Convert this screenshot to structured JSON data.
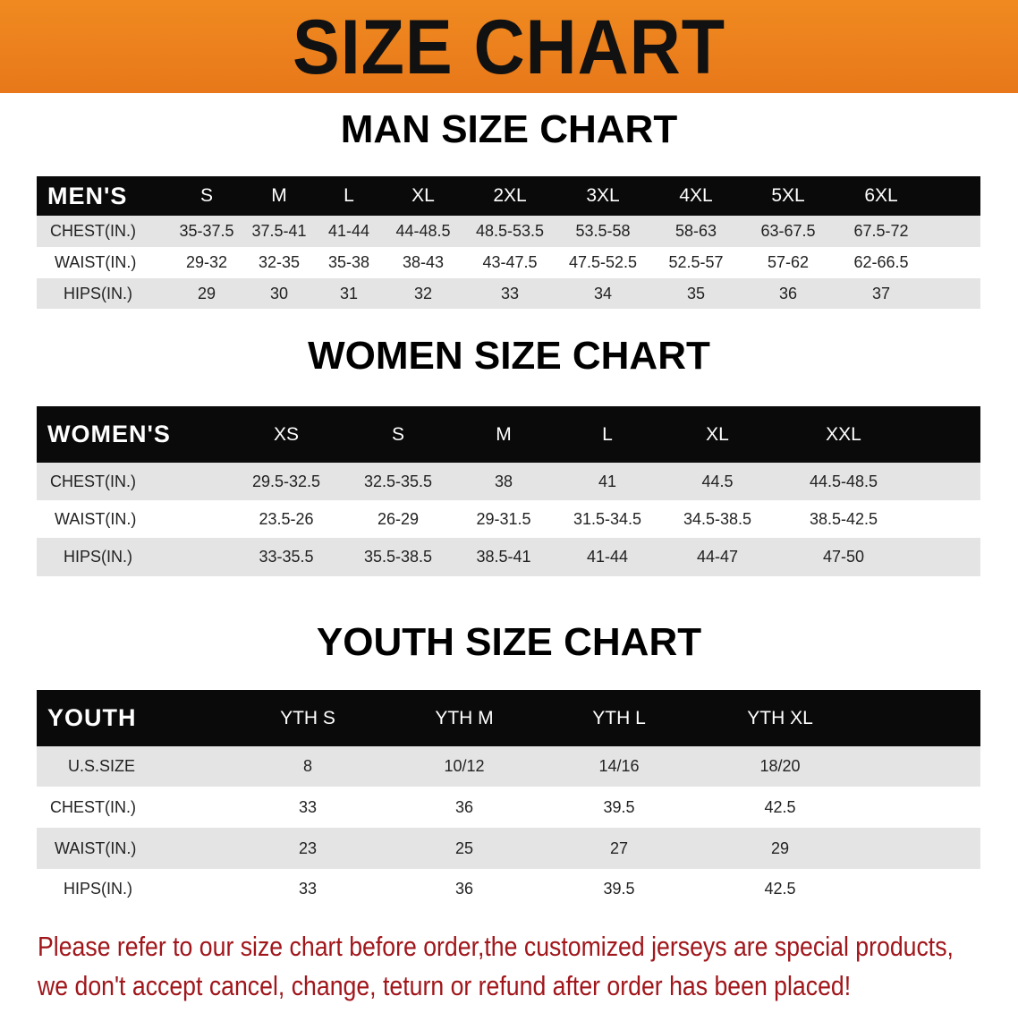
{
  "banner": {
    "title": "SIZE CHART",
    "color": "#ec8220"
  },
  "notice_color": "#a0161b",
  "sections": [
    {
      "title": "MAN SIZE CHART",
      "header": [
        "MEN'S",
        "S",
        "M",
        "L",
        "XL",
        "2XL",
        "3XL",
        "4XL",
        "5XL",
        "6XL"
      ],
      "rows": [
        [
          "CHEST(IN.)",
          "35-37.5",
          "37.5-41",
          "41-44",
          "44-48.5",
          "48.5-53.5",
          "53.5-58",
          "58-63",
          "63-67.5",
          "67.5-72"
        ],
        [
          "WAIST(IN.)",
          "29-32",
          "32-35",
          "35-38",
          "38-43",
          "43-47.5",
          "47.5-52.5",
          "52.5-57",
          "57-62",
          "62-66.5"
        ],
        [
          "HIPS(IN.)",
          "29",
          "30",
          "31",
          "32",
          "33",
          "34",
          "35",
          "36",
          "37"
        ]
      ]
    },
    {
      "title": "WOMEN SIZE CHART",
      "header": [
        "WOMEN'S",
        "XS",
        "S",
        "M",
        "L",
        "XL",
        "XXL"
      ],
      "rows": [
        [
          "CHEST(IN.)",
          "29.5-32.5",
          "32.5-35.5",
          "38",
          "41",
          "44.5",
          "44.5-48.5"
        ],
        [
          "WAIST(IN.)",
          "23.5-26",
          "26-29",
          "29-31.5",
          "31.5-34.5",
          "34.5-38.5",
          "38.5-42.5"
        ],
        [
          "HIPS(IN.)",
          "33-35.5",
          "35.5-38.5",
          "38.5-41",
          "41-44",
          "44-47",
          "47-50"
        ]
      ]
    },
    {
      "title": "YOUTH SIZE CHART",
      "header": [
        "YOUTH",
        "YTH S",
        "YTH M",
        "YTH L",
        "YTH XL"
      ],
      "rows": [
        [
          "U.S.SIZE",
          "8",
          "10/12",
          "14/16",
          "18/20"
        ],
        [
          "CHEST(IN.)",
          "33",
          "36",
          "39.5",
          "42.5"
        ],
        [
          "WAIST(IN.)",
          "23",
          "25",
          "27",
          "29"
        ],
        [
          "HIPS(IN.)",
          "33",
          "36",
          "39.5",
          "42.5"
        ]
      ]
    }
  ],
  "notice": [
    "Please refer to our size chart before order,the customized jerseys are special products,",
    "we don't accept cancel, change, teturn or refund after order has been placed!"
  ]
}
